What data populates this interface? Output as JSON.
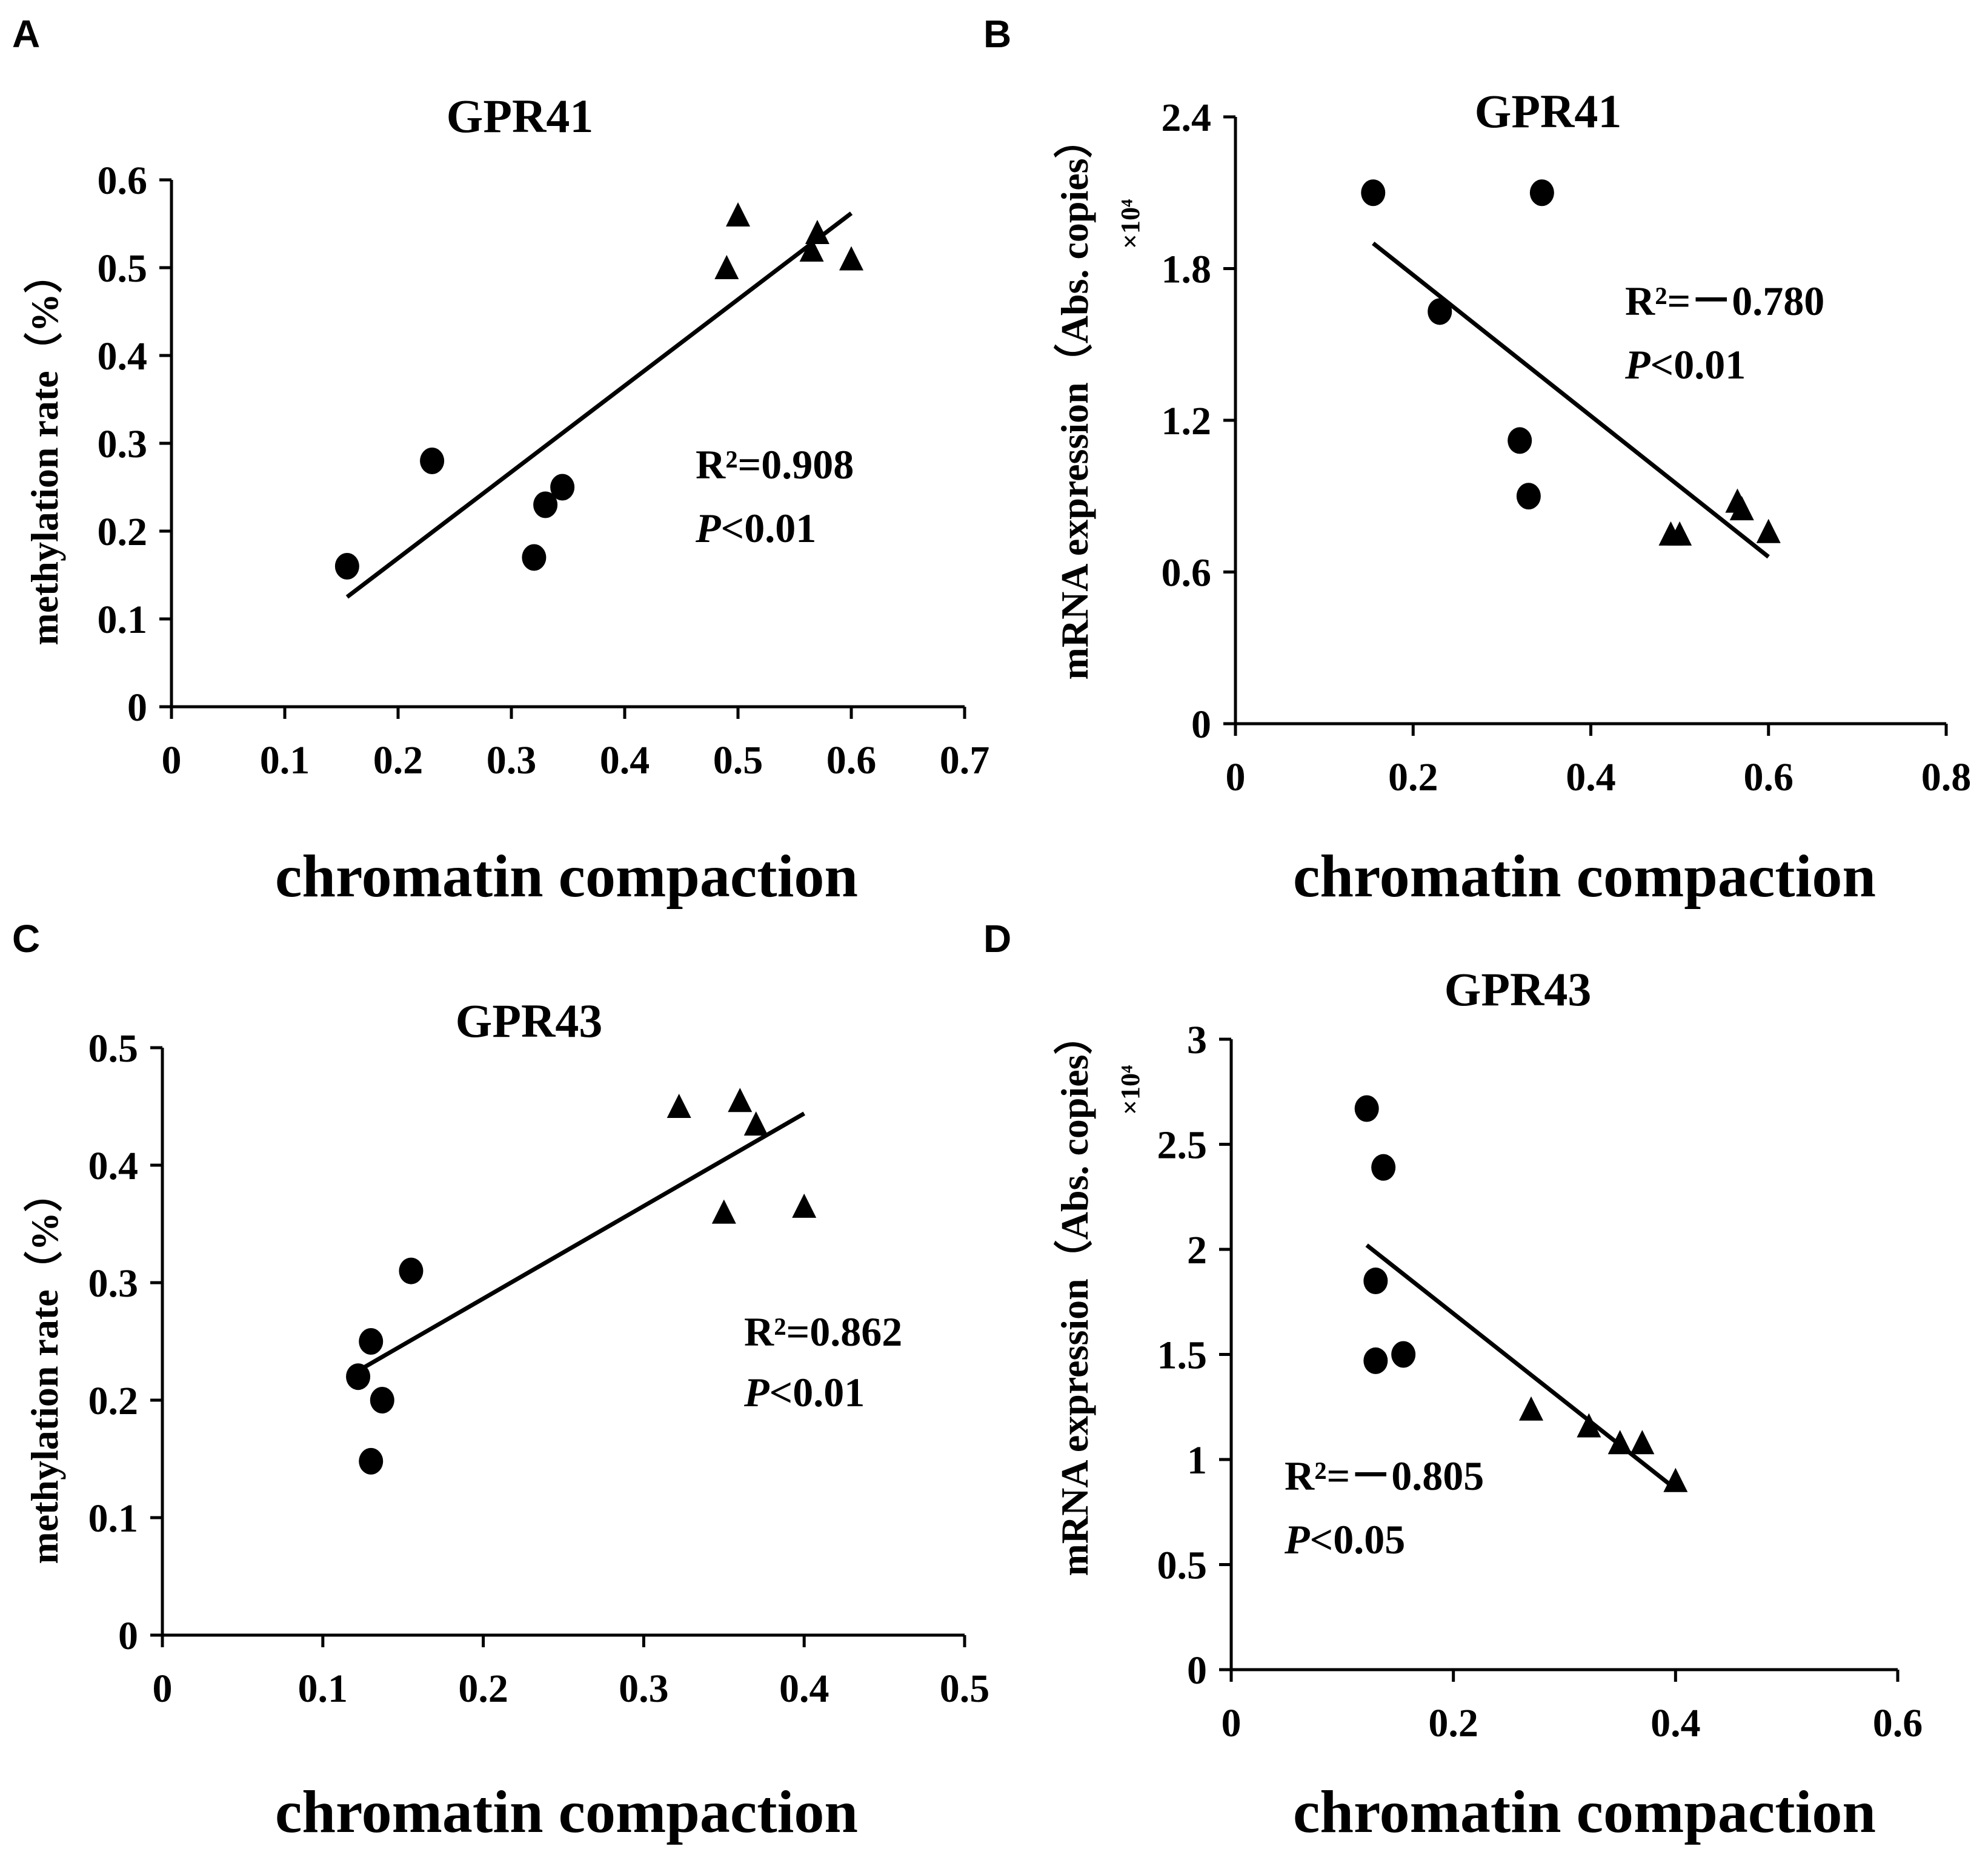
{
  "figure_labels": [
    "A",
    "B",
    "C",
    "D"
  ],
  "chart_data": [
    {
      "panel": "A",
      "type": "scatter",
      "title": "GPR41",
      "xlabel": "chromatin compaction",
      "ylabel": "methylation rate（%）",
      "ylabel_multiplier": "",
      "xlim": [
        0,
        0.7
      ],
      "ylim": [
        0,
        0.6
      ],
      "xticks": [
        "0",
        "0.1",
        "0.2",
        "0.3",
        "0.4",
        "0.5",
        "0.6",
        "0.7"
      ],
      "yticks": [
        "0",
        "0.1",
        "0.2",
        "0.3",
        "0.4",
        "0.5",
        "0.6"
      ],
      "series": [
        {
          "name": "circle",
          "marker": "circle",
          "x": [
            0.155,
            0.23,
            0.32,
            0.33,
            0.345
          ],
          "y": [
            0.16,
            0.28,
            0.17,
            0.23,
            0.25
          ]
        },
        {
          "name": "triangle",
          "marker": "triangle",
          "x": [
            0.49,
            0.5,
            0.565,
            0.57,
            0.6
          ],
          "y": [
            0.5,
            0.56,
            0.52,
            0.54,
            0.51
          ]
        }
      ],
      "fit_line": {
        "x": [
          0.155,
          0.6
        ],
        "y": [
          0.125,
          0.562
        ]
      },
      "annotation": {
        "r2_text": "R²=0.908",
        "p_label": "P",
        "p_rest": "<0.01"
      }
    },
    {
      "panel": "B",
      "type": "scatter",
      "title": "GPR41",
      "xlabel": "chromatin compaction",
      "ylabel": "mRNA expression（Abs. copies）",
      "ylabel_multiplier": "×10⁴",
      "xlim": [
        0,
        0.8
      ],
      "ylim": [
        0,
        2.4
      ],
      "xticks": [
        "0",
        "0.2",
        "0.4",
        "0.6",
        "0.8"
      ],
      "yticks": [
        "0",
        "0.6",
        "1.2",
        "1.8",
        "2.4"
      ],
      "series": [
        {
          "name": "circle",
          "marker": "circle",
          "x": [
            0.155,
            0.23,
            0.32,
            0.33,
            0.345
          ],
          "y": [
            2.1,
            1.63,
            1.12,
            0.9,
            2.1
          ]
        },
        {
          "name": "triangle",
          "marker": "triangle",
          "x": [
            0.49,
            0.5,
            0.565,
            0.57,
            0.6
          ],
          "y": [
            0.75,
            0.75,
            0.88,
            0.85,
            0.76
          ]
        }
      ],
      "fit_line": {
        "x": [
          0.155,
          0.6
        ],
        "y": [
          1.9,
          0.66
        ]
      },
      "annotation": {
        "r2_text": "R²=－0.780",
        "p_label": "P",
        "p_rest": "<0.01"
      }
    },
    {
      "panel": "C",
      "type": "scatter",
      "title": "GPR43",
      "xlabel": "chromatin compaction",
      "ylabel": "methylation rate（%）",
      "ylabel_multiplier": "",
      "xlim": [
        0,
        0.5
      ],
      "ylim": [
        0,
        0.5
      ],
      "xticks": [
        "0",
        "0.1",
        "0.2",
        "0.3",
        "0.4",
        "0.5"
      ],
      "yticks": [
        "0",
        "0.1",
        "0.2",
        "0.3",
        "0.4",
        "0.5"
      ],
      "series": [
        {
          "name": "circle",
          "marker": "circle",
          "x": [
            0.122,
            0.13,
            0.13,
            0.137,
            0.155
          ],
          "y": [
            0.22,
            0.25,
            0.148,
            0.2,
            0.31
          ]
        },
        {
          "name": "triangle",
          "marker": "triangle",
          "x": [
            0.322,
            0.35,
            0.36,
            0.37,
            0.4
          ],
          "y": [
            0.45,
            0.36,
            0.455,
            0.435,
            0.365
          ]
        }
      ],
      "fit_line": {
        "x": [
          0.122,
          0.4
        ],
        "y": [
          0.225,
          0.444
        ]
      },
      "annotation": {
        "r2_text": "R²=0.862",
        "p_label": "P",
        "p_rest": "<0.01"
      }
    },
    {
      "panel": "D",
      "type": "scatter",
      "title": "GPR43",
      "xlabel": "chromatin compaction",
      "ylabel": "mRNA expression（Abs. copies）",
      "ylabel_multiplier": "×10⁴",
      "xlim": [
        0,
        0.6
      ],
      "ylim": [
        0,
        3
      ],
      "xticks": [
        "0",
        "0.2",
        "0.4",
        "0.6"
      ],
      "yticks": [
        "0",
        "0.5",
        "1",
        "1.5",
        "2",
        "2.5",
        "3"
      ],
      "series": [
        {
          "name": "circle",
          "marker": "circle",
          "x": [
            0.122,
            0.13,
            0.13,
            0.137,
            0.155
          ],
          "y": [
            2.67,
            1.85,
            1.47,
            2.39,
            1.5
          ]
        },
        {
          "name": "triangle",
          "marker": "triangle",
          "x": [
            0.27,
            0.322,
            0.35,
            0.37,
            0.4
          ],
          "y": [
            1.24,
            1.16,
            1.08,
            1.08,
            0.9
          ]
        }
      ],
      "fit_line": {
        "x": [
          0.122,
          0.4
        ],
        "y": [
          2.02,
          0.86
        ]
      },
      "annotation": {
        "r2_text": "R²=－0.805",
        "p_label": "P",
        "p_rest": "<0.05"
      }
    }
  ]
}
